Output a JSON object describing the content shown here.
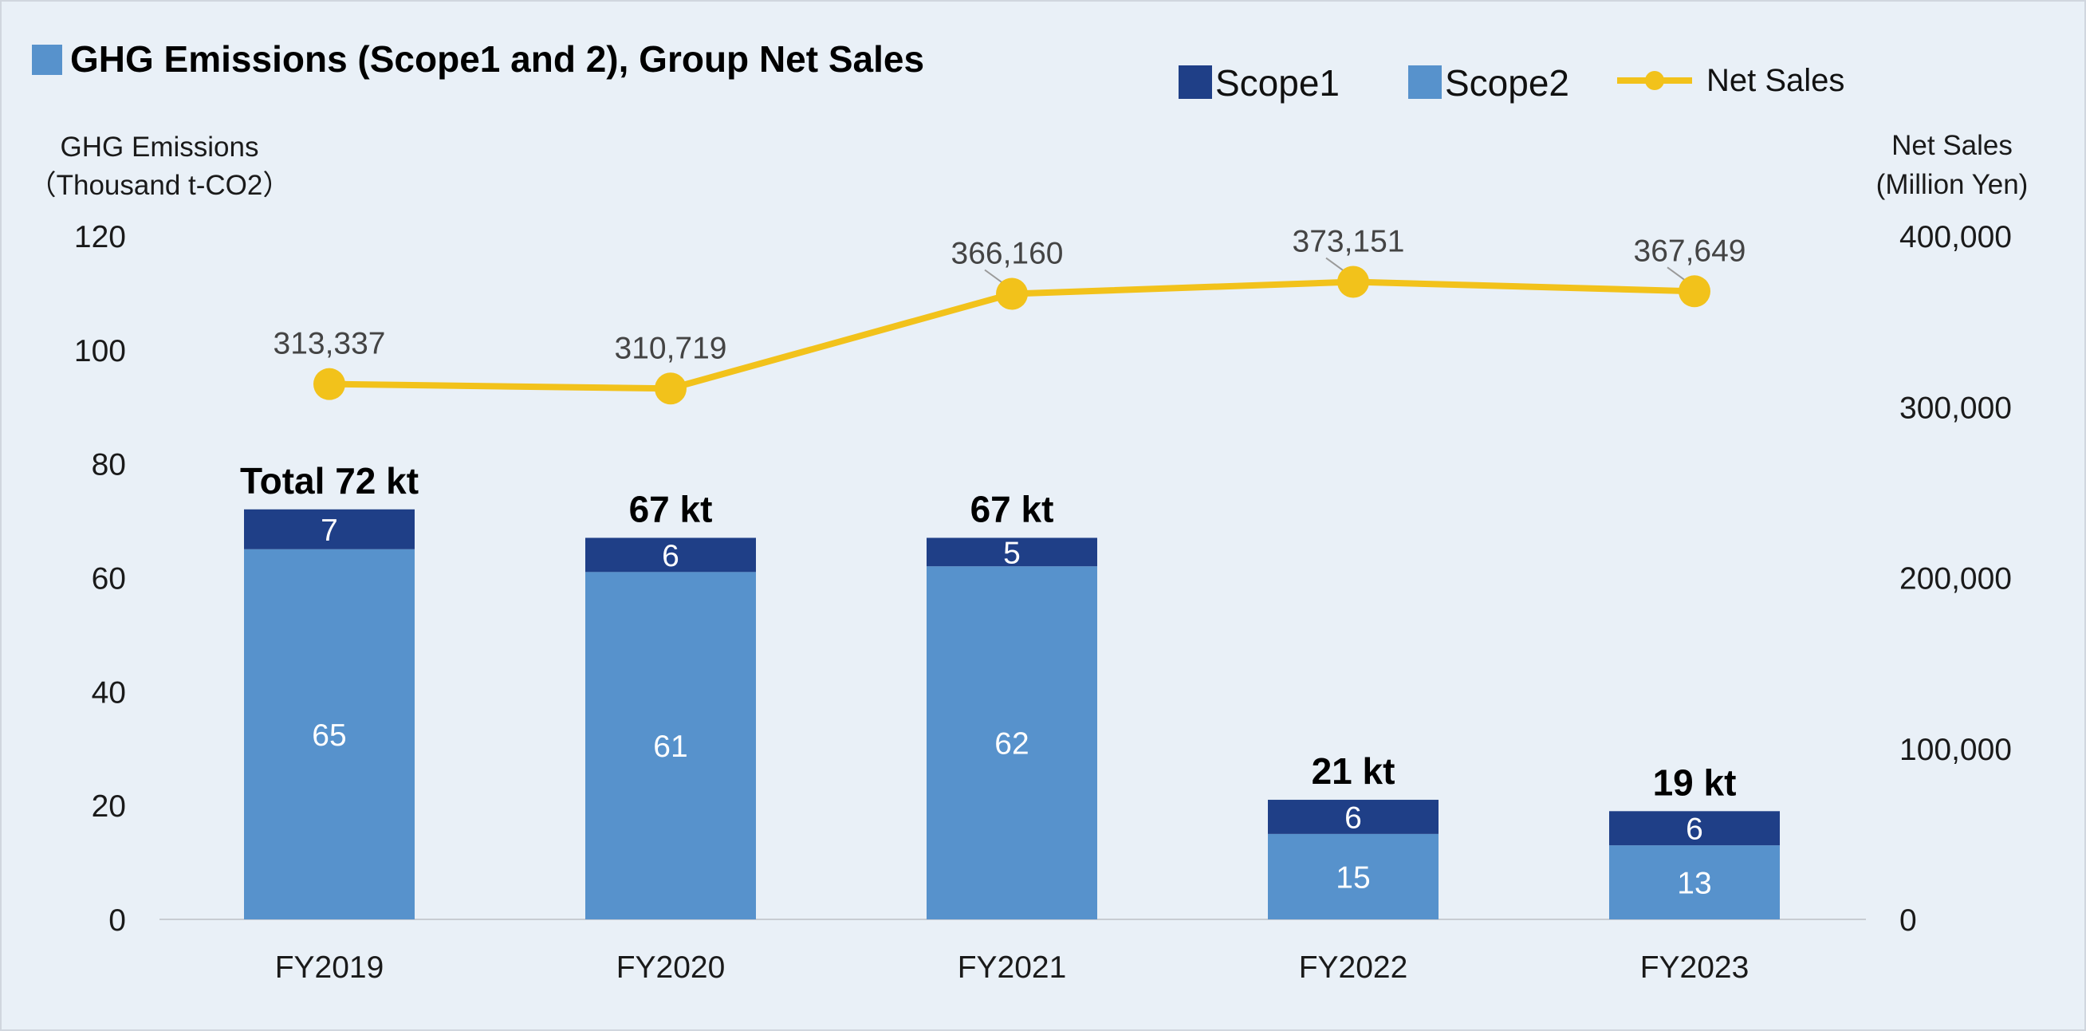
{
  "chart_data": {
    "type": "bar",
    "title": "GHG Emissions (Scope1 and 2), Group Net Sales",
    "categories": [
      "FY2019",
      "FY2020",
      "FY2021",
      "FY2022",
      "FY2023"
    ],
    "y_left": {
      "title_lines": [
        "GHG Emissions",
        "（Thousand t-CO2）"
      ],
      "ylim": [
        0,
        120
      ],
      "ticks": [
        "0",
        "20",
        "40",
        "60",
        "80",
        "100",
        "120"
      ]
    },
    "y_right": {
      "title_lines": [
        "Net Sales",
        "(Million Yen)"
      ],
      "ylim": [
        0,
        400000
      ],
      "ticks": [
        "0",
        "100,000",
        "200,000",
        "300,000",
        "400,000"
      ]
    },
    "series": [
      {
        "name": "Scope2",
        "type": "bar",
        "stack": "emissions",
        "axis": "left",
        "color": "#5792cc",
        "values": [
          65,
          61,
          62,
          15,
          13
        ],
        "labels": [
          "65",
          "61",
          "62",
          "15",
          "13"
        ]
      },
      {
        "name": "Scope1",
        "type": "bar",
        "stack": "emissions",
        "axis": "left",
        "color": "#1f3f87",
        "values": [
          7,
          6,
          5,
          6,
          6
        ],
        "labels": [
          "7",
          "6",
          "5",
          "6",
          "6"
        ]
      },
      {
        "name": "Net Sales",
        "type": "line",
        "axis": "right",
        "color": "#f2c21b",
        "values": [
          313337,
          310719,
          366160,
          373151,
          367649
        ],
        "labels": [
          "313,337",
          "310,719",
          "366,160",
          "373,151",
          "367,649"
        ]
      }
    ],
    "totals": {
      "prefix": "Total ",
      "labels": [
        "72 kt",
        "67 kt",
        "67 kt",
        "21 kt",
        "19 kt"
      ]
    },
    "legend": {
      "position": "top-right",
      "items": [
        "Scope1",
        "Scope2",
        "Net Sales"
      ]
    },
    "grid": false,
    "background": "#e9f0f7"
  }
}
